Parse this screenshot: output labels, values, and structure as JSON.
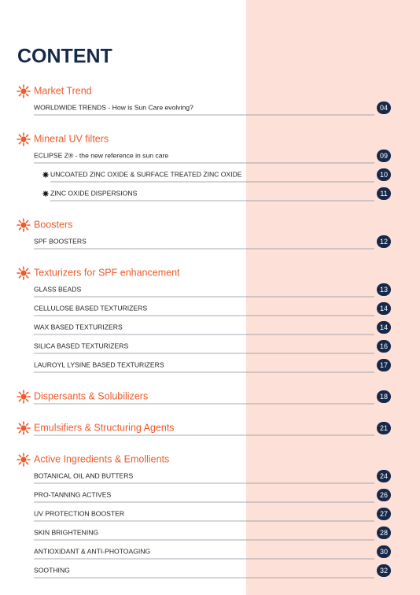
{
  "title": "CONTENT",
  "sections": [
    {
      "heading": "Market Trend",
      "items": [
        {
          "label": "WORLDWIDE TRENDS - How is Sun Care evolving?",
          "page": "04"
        }
      ]
    },
    {
      "heading": "Mineral UV filters",
      "items": [
        {
          "label": "ECLIPSE Z® - the new reference in sun care",
          "page": "09",
          "items": [
            {
              "label": "UNCOATED ZINC OXIDE & SURFACE TREATED ZINC OXIDE",
              "page": "10"
            },
            {
              "label": "ZINC OXIDE DISPERSIONS",
              "page": "11"
            }
          ]
        }
      ]
    },
    {
      "heading": "Boosters",
      "items": [
        {
          "label": "SPF BOOSTERS",
          "page": "12"
        }
      ]
    },
    {
      "heading": "Texturizers for SPF enhancement",
      "items": [
        {
          "label": "GLASS BEADS",
          "page": "13"
        },
        {
          "label": "CELLULOSE BASED TEXTURIZERS",
          "page": "14"
        },
        {
          "label": "WAX BASED TEXTURIZERS",
          "page": "14"
        },
        {
          "label": "SILICA BASED TEXTURIZERS",
          "page": "16"
        },
        {
          "label": "LAUROYL LYSINE BASED TEXTURIZERS",
          "page": "17"
        }
      ]
    },
    {
      "heading": "Dispersants & Solubilizers",
      "page": "18"
    },
    {
      "heading": "Emulsifiers & Structuring Agents",
      "page": "21"
    },
    {
      "heading": "Active Ingredients & Emollients",
      "items": [
        {
          "label": "BOTANICAL OIL AND BUTTERS",
          "page": "24"
        },
        {
          "label": "PRO-TANNING ACTIVES",
          "page": "26"
        },
        {
          "label": "UV PROTECTION BOOSTER",
          "page": "27"
        },
        {
          "label": "SKIN BRIGHTENING",
          "page": "28"
        },
        {
          "label": "ANTIOXIDANT & ANTI-PHOTOAGING",
          "page": "30"
        },
        {
          "label": "SOOTHING",
          "page": "32"
        }
      ]
    }
  ]
}
